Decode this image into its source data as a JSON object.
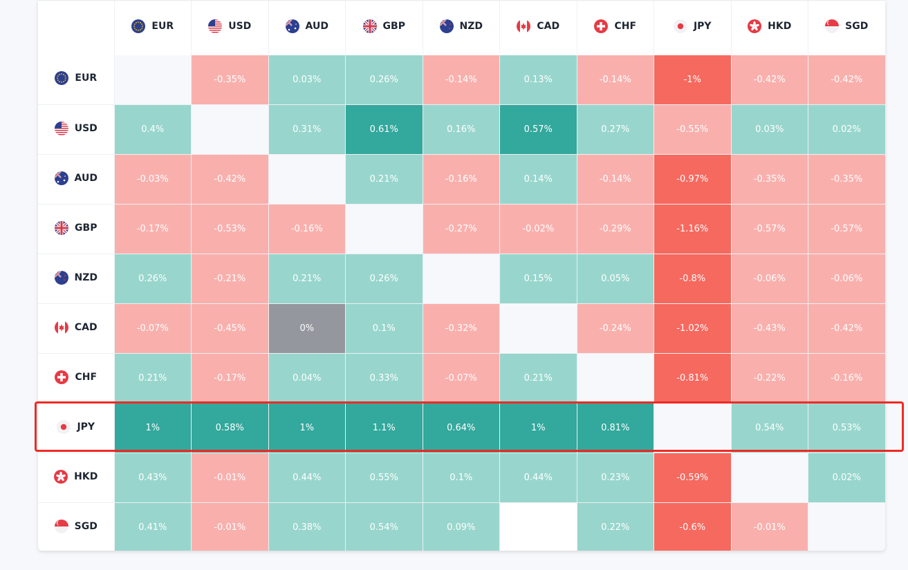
{
  "currencies": [
    "EUR",
    "USD",
    "AUD",
    "GBP",
    "NZD",
    "CAD",
    "CHF",
    "JPY",
    "HKD",
    "SGD"
  ],
  "rows": [
    {
      "code": "EUR",
      "values": [
        "",
        "-0.35%",
        "0.03%",
        "0.26%",
        "-0.14%",
        "0.13%",
        "-0.14%",
        "-1%",
        "-0.42%",
        "-0.42%"
      ]
    },
    {
      "code": "USD",
      "values": [
        "0.4%",
        "",
        "0.31%",
        "0.61%",
        "0.16%",
        "0.57%",
        "0.27%",
        "-0.55%",
        "0.03%",
        "0.02%"
      ]
    },
    {
      "code": "AUD",
      "values": [
        "-0.03%",
        "-0.42%",
        "",
        "0.21%",
        "-0.16%",
        "0.14%",
        "-0.14%",
        "-0.97%",
        "-0.35%",
        "-0.35%"
      ]
    },
    {
      "code": "GBP",
      "values": [
        "-0.17%",
        "-0.53%",
        "-0.16%",
        "",
        "-0.27%",
        "-0.02%",
        "-0.29%",
        "-1.16%",
        "-0.57%",
        "-0.57%"
      ]
    },
    {
      "code": "NZD",
      "values": [
        "0.26%",
        "-0.21%",
        "0.21%",
        "0.26%",
        "",
        "0.15%",
        "0.05%",
        "-0.8%",
        "-0.06%",
        "-0.06%"
      ]
    },
    {
      "code": "CAD",
      "values": [
        "-0.07%",
        "-0.45%",
        "0%",
        "0.1%",
        "-0.32%",
        "",
        "-0.24%",
        "-1.02%",
        "-0.43%",
        "-0.42%"
      ]
    },
    {
      "code": "CHF",
      "values": [
        "0.21%",
        "-0.17%",
        "0.04%",
        "0.33%",
        "-0.07%",
        "0.21%",
        "",
        "-0.81%",
        "-0.22%",
        "-0.16%"
      ]
    },
    {
      "code": "JPY",
      "values": [
        "1%",
        "0.58%",
        "1%",
        "1.1%",
        "0.64%",
        "1%",
        "0.81%",
        "",
        "0.54%",
        "0.53%"
      ]
    },
    {
      "code": "HKD",
      "values": [
        "0.43%",
        "-0.01%",
        "0.44%",
        "0.55%",
        "0.1%",
        "0.44%",
        "0.23%",
        "-0.59%",
        "",
        "0.02%"
      ]
    },
    {
      "code": "SGD",
      "values": [
        "0.41%",
        "-0.01%",
        "0.38%",
        "0.54%",
        "0.09%",
        "",
        "0.22%",
        "-0.6%",
        "-0.01%",
        ""
      ]
    }
  ],
  "cell_styles": [
    [
      "empty",
      "neg-light",
      "pos-light",
      "pos-light",
      "neg-light",
      "pos-light",
      "neg-light",
      "neg-dark",
      "neg-light",
      "neg-light"
    ],
    [
      "pos-light",
      "empty",
      "pos-light",
      "pos-dark",
      "pos-light",
      "pos-dark",
      "pos-light",
      "neg-light",
      "pos-light",
      "pos-light"
    ],
    [
      "neg-light",
      "neg-light",
      "empty",
      "pos-light",
      "neg-light",
      "pos-light",
      "neg-light",
      "neg-dark",
      "neg-light",
      "neg-light"
    ],
    [
      "neg-light",
      "neg-light",
      "neg-light",
      "empty",
      "neg-light",
      "neg-light",
      "neg-light",
      "neg-dark",
      "neg-light",
      "neg-light"
    ],
    [
      "pos-light",
      "neg-light",
      "pos-light",
      "pos-light",
      "empty",
      "pos-light",
      "pos-light",
      "neg-dark",
      "neg-light",
      "neg-light"
    ],
    [
      "neg-light",
      "neg-light",
      "neutral",
      "pos-light",
      "neg-light",
      "empty",
      "neg-light",
      "neg-dark",
      "neg-light",
      "neg-light"
    ],
    [
      "pos-light",
      "neg-light",
      "pos-light",
      "pos-light",
      "neg-light",
      "pos-light",
      "empty",
      "neg-dark",
      "neg-light",
      "neg-light"
    ],
    [
      "pos-dark",
      "pos-dark",
      "pos-dark",
      "pos-dark",
      "pos-dark",
      "pos-dark",
      "pos-dark",
      "empty",
      "pos-light",
      "pos-light"
    ],
    [
      "pos-light",
      "neg-light",
      "pos-light",
      "pos-light",
      "pos-light",
      "pos-light",
      "pos-light",
      "neg-dark",
      "empty",
      "pos-light"
    ],
    [
      "pos-light",
      "neg-light",
      "pos-light",
      "pos-light",
      "pos-light",
      "blank",
      "pos-light",
      "neg-dark",
      "neg-light",
      "empty"
    ]
  ],
  "flag_icons": {
    "EUR": "eu-flag-icon",
    "USD": "us-flag-icon",
    "AUD": "au-flag-icon",
    "GBP": "uk-flag-icon",
    "NZD": "nz-flag-icon",
    "CAD": "canada-flag-icon",
    "CHF": "swiss-flag-icon",
    "JPY": "japan-flag-icon",
    "HKD": "hong-kong-flag-icon",
    "SGD": "singapore-flag-icon"
  },
  "highlighted_row": "JPY",
  "colors": {
    "positive_light": "#98d6cd",
    "positive_dark": "#33a89d",
    "negative_light": "#f9b0ad",
    "negative_dark": "#f6695f",
    "neutral": "#95979f",
    "highlight": "#ee2a24"
  }
}
